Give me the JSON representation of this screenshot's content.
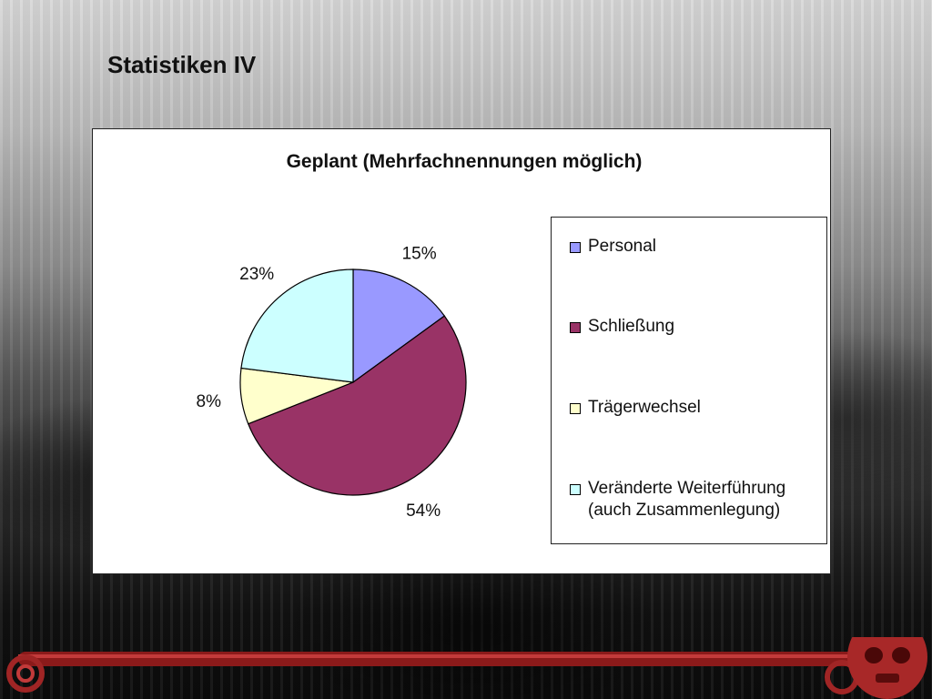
{
  "slide": {
    "title": "Statistiken IV"
  },
  "chart_data": {
    "type": "pie",
    "title": "Geplant (Mehrfachnennungen möglich)",
    "categories": [
      "Personal",
      "Schließung",
      "Trägerwechsel",
      "Veränderte Weiterführung (auch Zusammenlegung)"
    ],
    "values": [
      15,
      54,
      8,
      23
    ],
    "data_labels": [
      "15%",
      "54%",
      "8%",
      "23%"
    ],
    "colors": [
      "#9999ff",
      "#993366",
      "#ffffcc",
      "#ccffff"
    ],
    "legend": {
      "position": "right",
      "entries": [
        {
          "lines": [
            "Personal"
          ]
        },
        {
          "lines": [
            "Schließung"
          ]
        },
        {
          "lines": [
            "Trägerwechsel"
          ]
        },
        {
          "lines": [
            "Veränderte Weiterführung",
            "(auch Zusammenlegung)"
          ]
        }
      ]
    }
  }
}
